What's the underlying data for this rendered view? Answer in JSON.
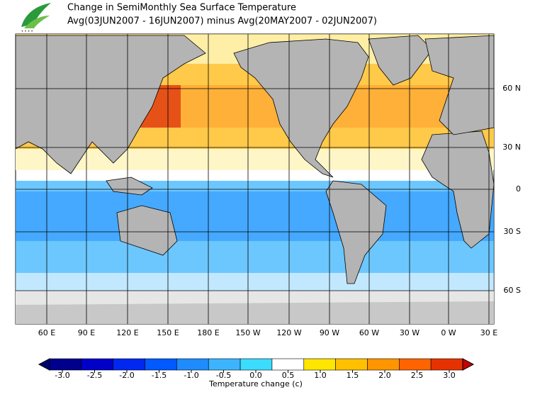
{
  "header": {
    "title": "Change in SemiMonthly Sea Surface Temperature",
    "subtitle": "Avg(03JUN2007 - 16JUN2007) minus Avg(20MAY2007 - 02JUN2007)"
  },
  "map": {
    "lat_labels": [
      "60 N",
      "30 N",
      "0",
      "30 S",
      "60 S"
    ],
    "lon_labels": [
      "60 E",
      "90 E",
      "120 E",
      "150 E",
      "180 E",
      "150 W",
      "120 W",
      "90 W",
      "60 W",
      "30 W",
      "0 W",
      "30 E"
    ]
  },
  "colorbar": {
    "ticks": [
      {
        "value": -3,
        "label": "-3.0"
      },
      -2.5,
      {
        "value": -2,
        "label": "-2.0"
      },
      -1.5,
      {
        "value": -1,
        "label": "-1.0"
      },
      -0.5,
      {
        "value": 0,
        "label": "0.0"
      },
      0.5,
      {
        "value": 1,
        "label": "1.0"
      },
      1.5,
      {
        "value": 2,
        "label": "2.0"
      },
      2.5,
      {
        "value": 3,
        "label": "3.0"
      }
    ],
    "colors": [
      "#00006e",
      "#00008c",
      "#0000c8",
      "#0028f0",
      "#005aff",
      "#1e8cff",
      "#3cb4ff",
      "#3cdcff",
      "#ffffff",
      "#ffe600",
      "#ffc000",
      "#ff9600",
      "#ff6400",
      "#e63200",
      "#c80000"
    ],
    "title": "Temperature change  (c)"
  }
}
